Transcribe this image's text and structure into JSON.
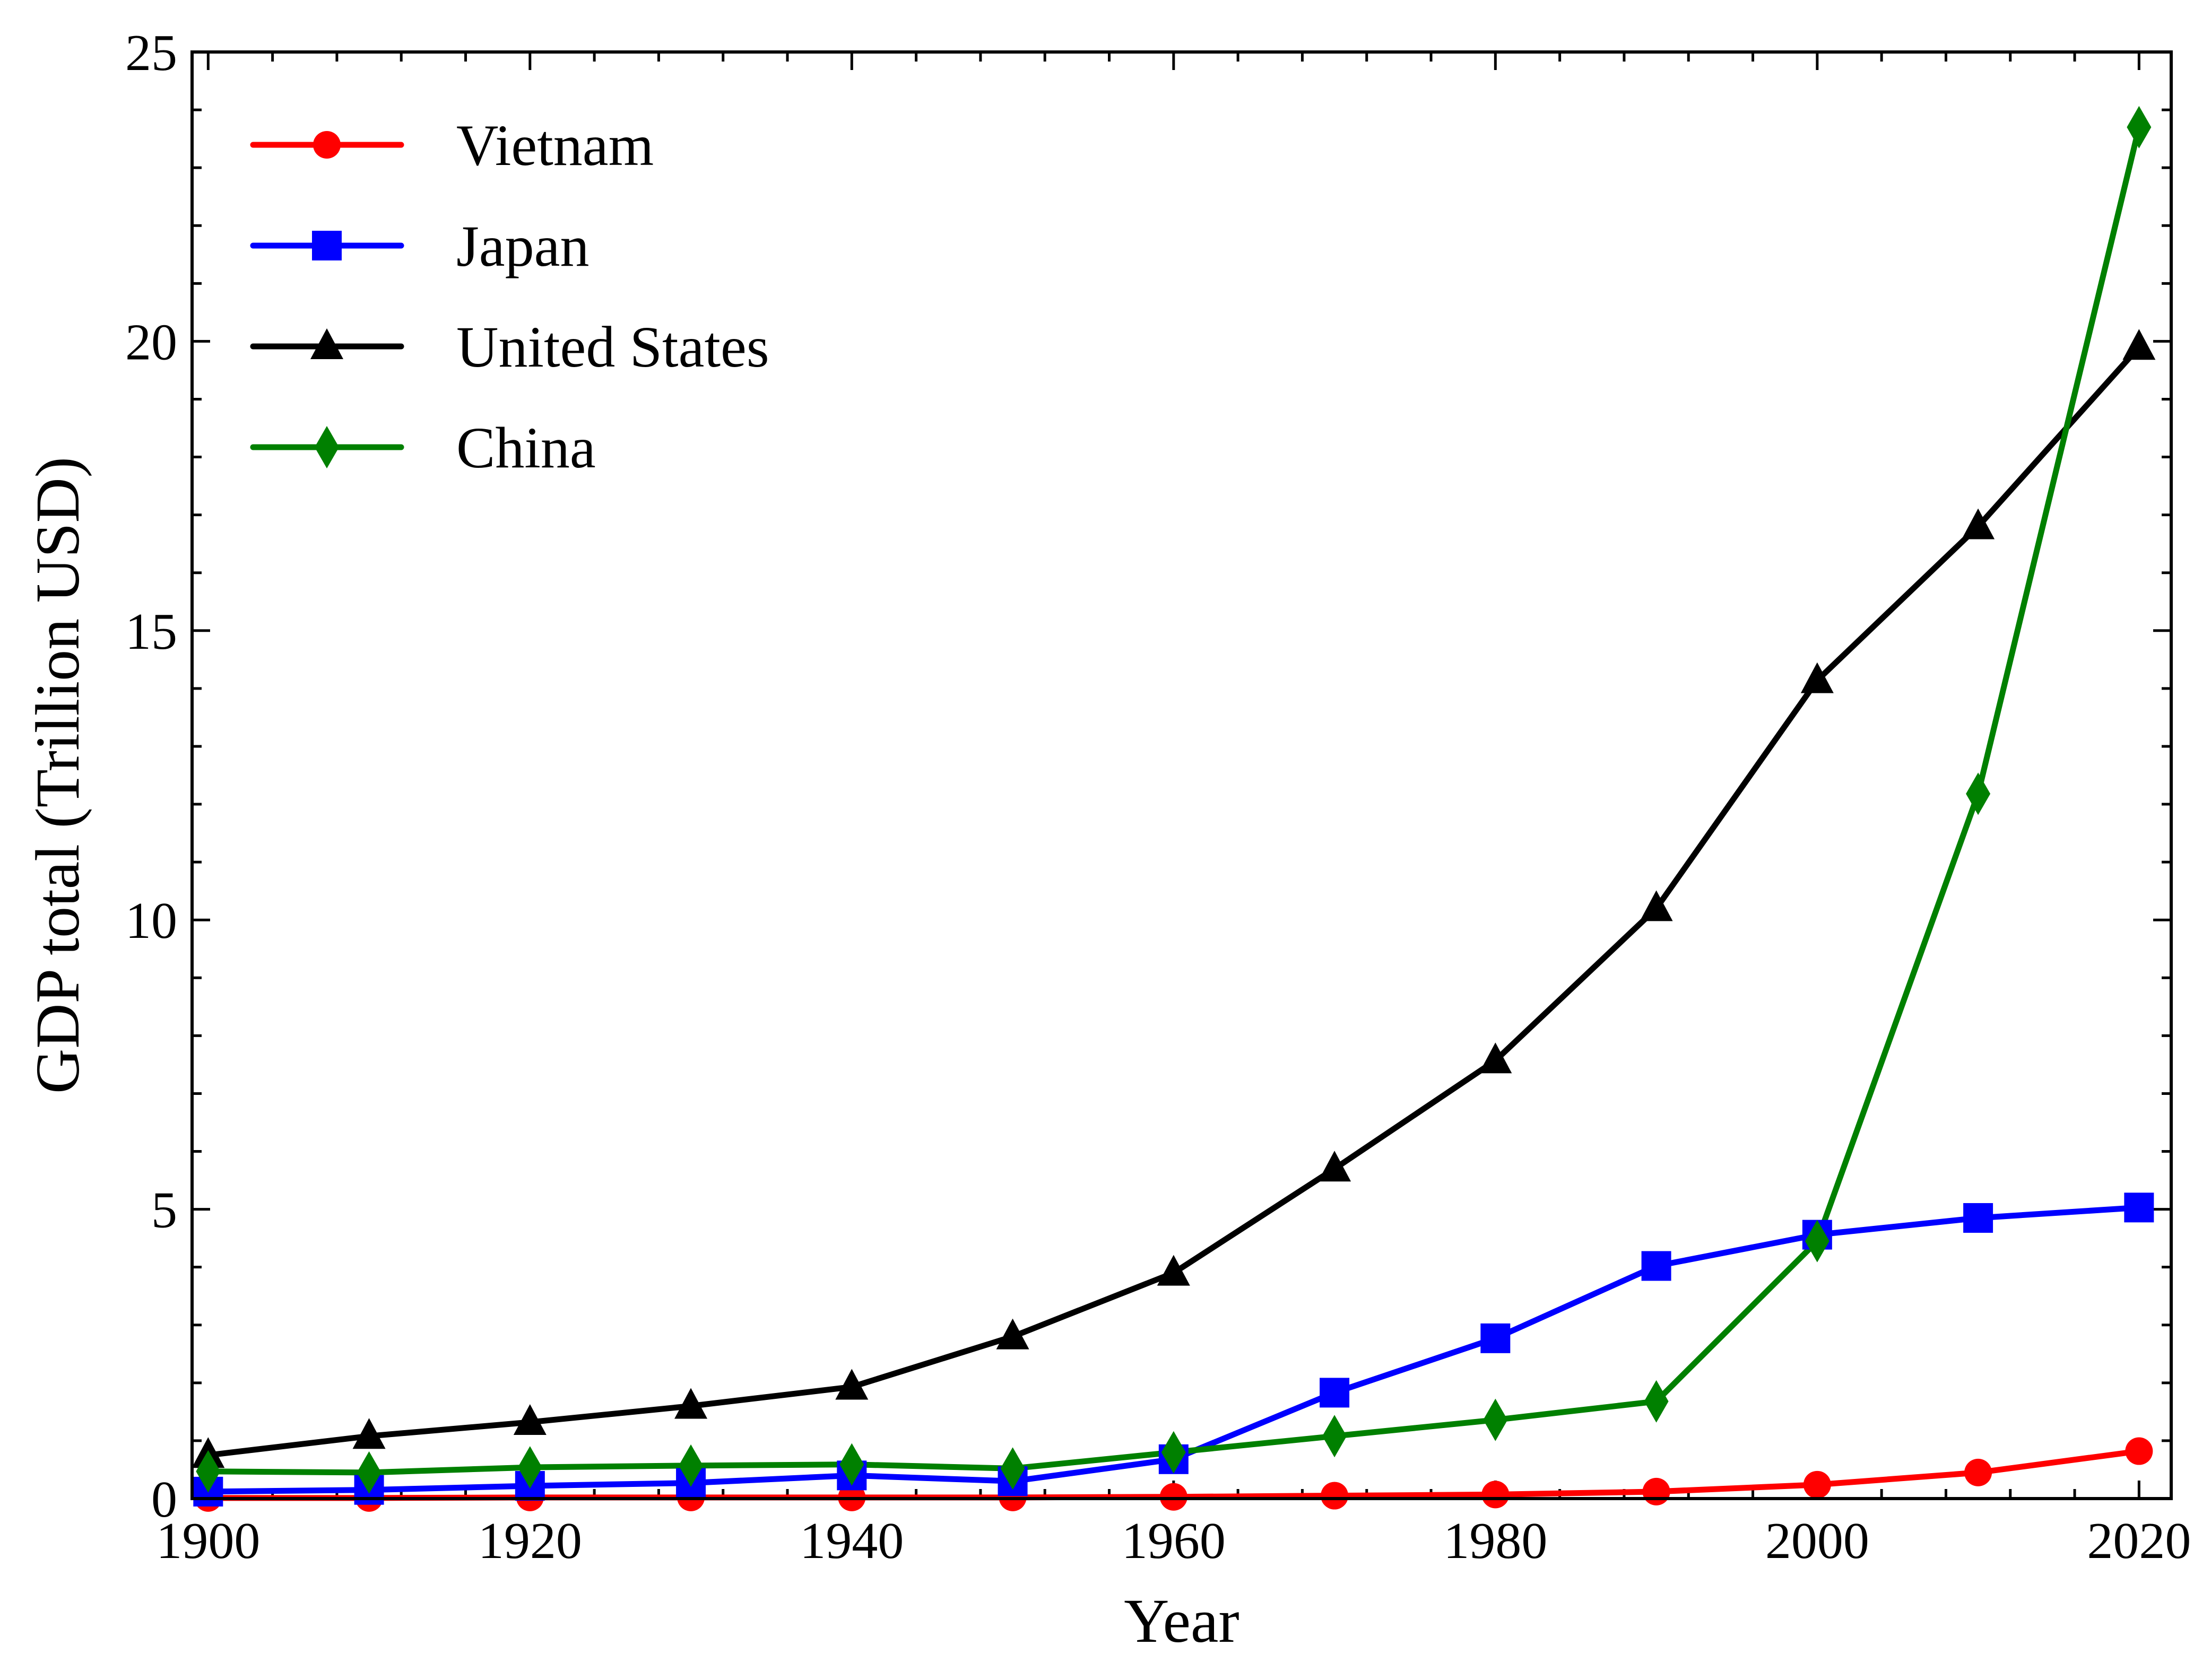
{
  "chart_data": {
    "type": "line",
    "title": "",
    "xlabel": "Year",
    "ylabel": "GDP total (Trillion USD)",
    "xlim": [
      1899,
      2022
    ],
    "ylim": [
      0,
      25
    ],
    "x_ticks": [
      1900,
      1920,
      1940,
      1960,
      1980,
      2000,
      2020
    ],
    "y_ticks": [
      0,
      5,
      10,
      15,
      20,
      25
    ],
    "y_minor_step": 1,
    "x_minor_step": 4,
    "grid": false,
    "legend_position": "top-left",
    "x": [
      1900,
      1910,
      1920,
      1930,
      1940,
      1950,
      1960,
      1970,
      1980,
      1990,
      2000,
      2010,
      2020
    ],
    "series": [
      {
        "name": "Vietnam",
        "color": "#ff0000",
        "marker": "circle",
        "values": [
          0.01,
          0.01,
          0.02,
          0.02,
          0.02,
          0.02,
          0.03,
          0.05,
          0.07,
          0.12,
          0.24,
          0.45,
          0.82
        ]
      },
      {
        "name": "Japan",
        "color": "#0000ff",
        "marker": "square",
        "values": [
          0.12,
          0.15,
          0.22,
          0.27,
          0.4,
          0.3,
          0.68,
          1.83,
          2.77,
          4.02,
          4.56,
          4.85,
          5.03
        ]
      },
      {
        "name": "United States",
        "color": "#000000",
        "marker": "triangle",
        "values": [
          0.75,
          1.08,
          1.32,
          1.6,
          1.93,
          2.8,
          3.9,
          5.7,
          7.57,
          10.2,
          14.14,
          16.8,
          19.9
        ]
      },
      {
        "name": "China",
        "color": "#008000",
        "marker": "diamond",
        "values": [
          0.47,
          0.45,
          0.54,
          0.57,
          0.59,
          0.52,
          0.8,
          1.08,
          1.36,
          1.68,
          4.45,
          12.18,
          23.7
        ]
      }
    ]
  }
}
